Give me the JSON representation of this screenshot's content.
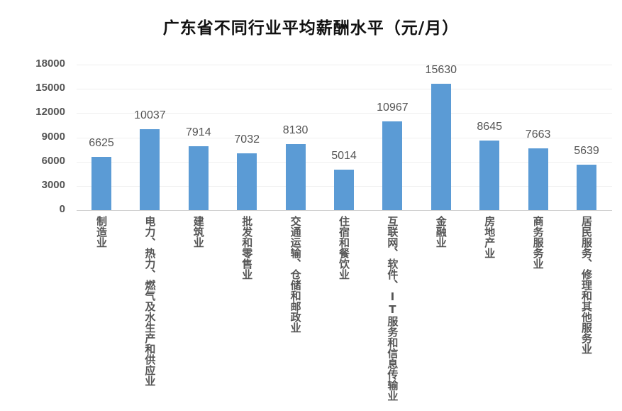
{
  "chart_data": {
    "type": "bar",
    "title": "广东省不同行业平均薪酬水平（元/月）",
    "xlabel": "",
    "ylabel": "",
    "ylim": [
      0,
      18000
    ],
    "yticks": [
      "18000",
      "15000",
      "12000",
      "9000",
      "6000",
      "3000",
      "0"
    ],
    "grid": true,
    "legend": null,
    "bar_color": "#5b9bd5",
    "categories": [
      "制造业",
      "电力、热力、燃气及水生产和供应业",
      "建筑业",
      "批发和零售业",
      "交通运输、仓储和邮政业",
      "住宿和餐饮业",
      "互联网、软件、IT服务和信息传输业",
      "金融业",
      "房地产业",
      "商务服务业",
      "居民服务、修理和其他服务业"
    ],
    "values": [
      6625,
      10037,
      7914,
      7032,
      8130,
      5014,
      10967,
      15630,
      8645,
      7663,
      5639
    ],
    "value_labels": [
      "6625",
      "10037",
      "7914",
      "7032",
      "8130",
      "5014",
      "10967",
      "15630",
      "8645",
      "7663",
      "5639"
    ]
  }
}
